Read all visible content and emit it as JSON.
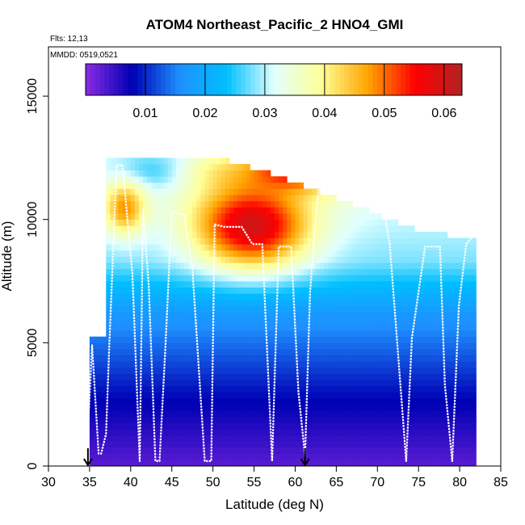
{
  "chart_data": {
    "type": "heatmap",
    "title": "ATOM4 Northeast_Pacific_2 HNO4_GMI",
    "flights_label": "Flts: 12,13",
    "dates_label": "MMDD: 0519,0521",
    "xlabel": "Latitude (deg N)",
    "ylabel": "Altitude (m)",
    "xlim": [
      30,
      85
    ],
    "ylim": [
      0,
      17000
    ],
    "x_ticks": [
      "30",
      "35",
      "40",
      "45",
      "50",
      "55",
      "60",
      "65",
      "70",
      "75",
      "80",
      "85"
    ],
    "x_tick_values": [
      30,
      35,
      40,
      45,
      50,
      55,
      60,
      65,
      70,
      75,
      80,
      85
    ],
    "y_ticks": [
      "0",
      "5000",
      "10000",
      "15000"
    ],
    "y_tick_values": [
      0,
      5000,
      10000,
      15000
    ],
    "colorbar": {
      "range": [
        0,
        0.063
      ],
      "ticks": [
        "0.01",
        "0.02",
        "0.03",
        "0.04",
        "0.05",
        "0.06"
      ],
      "tick_values": [
        0.01,
        0.02,
        0.03,
        0.04,
        0.05,
        0.06
      ],
      "colors": [
        "#8a2be2",
        "#0000b4",
        "#1e90ff",
        "#00bfff",
        "#e0ffff",
        "#ffff99",
        "#ffa500",
        "#ff0000",
        "#b22222"
      ]
    },
    "curtain": {
      "lat_range": [
        36,
        82
      ],
      "alt_top": [
        12500,
        12400,
        12300,
        11500,
        10500,
        9500,
        9000
      ],
      "layers": [
        {
          "alt": [
            11200,
            12500
          ],
          "lat": [
            38,
            47
          ],
          "value": 0.025
        },
        {
          "alt": [
            11200,
            12500
          ],
          "lat": [
            47,
            55
          ],
          "value": 0.038
        },
        {
          "alt": [
            11200,
            12500
          ],
          "lat": [
            55,
            64
          ],
          "value": 0.055
        },
        {
          "alt": [
            11200,
            12500
          ],
          "lat": [
            64,
            70
          ],
          "value": 0.043
        },
        {
          "alt": [
            9500,
            11200
          ],
          "lat": [
            37,
            41
          ],
          "value": 0.048
        },
        {
          "alt": [
            8300,
            11000
          ],
          "lat": [
            49,
            60
          ],
          "value": 0.06
        }
      ]
    },
    "markers_lat": [
      34.8,
      61.2
    ],
    "flight_track": {
      "lat": [
        34.8,
        35.3,
        36.1,
        36.4,
        37.0,
        37.4,
        38.3,
        39.0,
        40.2,
        41.1,
        41.5,
        42.2,
        43.0,
        43.5,
        44.2,
        45.0,
        46.5,
        47.5,
        49.0,
        49.8,
        50.2,
        51.4,
        53.5,
        54.8,
        56.0,
        57.2,
        58.0,
        59.5,
        60.4,
        61.2,
        61.8,
        62.6,
        63.3,
        65.8,
        67.6,
        68.3,
        69.5,
        70.6,
        71.5,
        73.5,
        74.2,
        75.8,
        77.6,
        78.2,
        79.1,
        79.9,
        80.8,
        82.0
      ],
      "alt": [
        1500,
        4900,
        500,
        500,
        1300,
        4900,
        12200,
        12200,
        7800,
        200,
        10400,
        7300,
        200,
        200,
        4700,
        10300,
        10200,
        8000,
        200,
        200,
        9800,
        9700,
        9700,
        9000,
        9000,
        200,
        8900,
        8900,
        3000,
        400,
        7000,
        10500,
        12000,
        12000,
        12000,
        11000,
        10800,
        10800,
        9000,
        200,
        5200,
        8900,
        8900,
        3300,
        200,
        6500,
        9000,
        9500
      ]
    }
  }
}
